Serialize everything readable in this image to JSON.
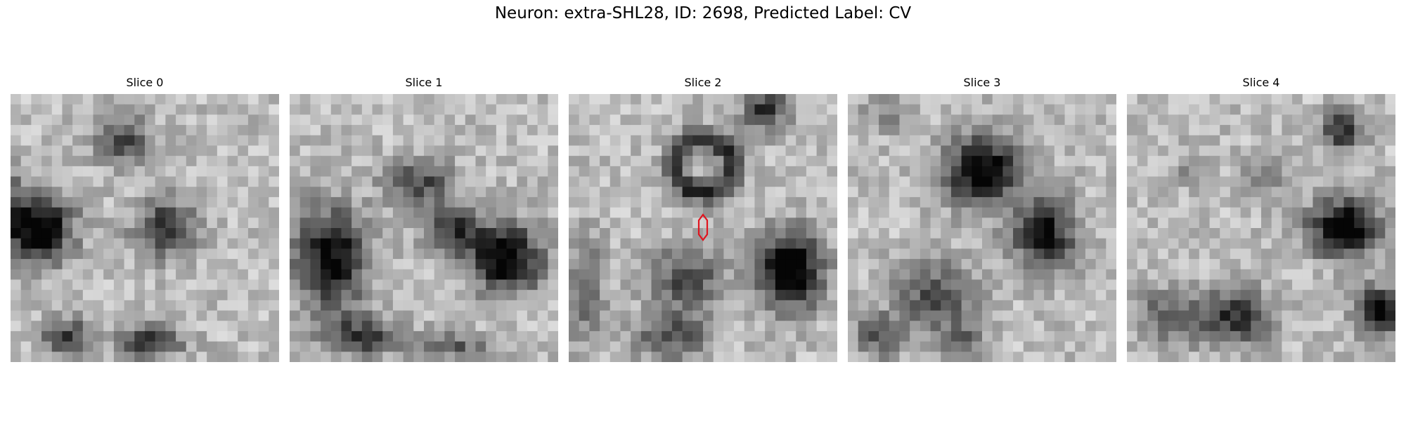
{
  "figure": {
    "title": "Neuron: extra-SHL28, ID: 2698, Predicted Label: CV"
  },
  "panels": [
    {
      "title": "Slice 0"
    },
    {
      "title": "Slice 1"
    },
    {
      "title": "Slice 2"
    },
    {
      "title": "Slice 3"
    },
    {
      "title": "Slice 4"
    }
  ],
  "marker": {
    "panel_index": 2,
    "color": "#e0141e",
    "shape": "elongated-hexagon-outline"
  },
  "colormap": "gray"
}
